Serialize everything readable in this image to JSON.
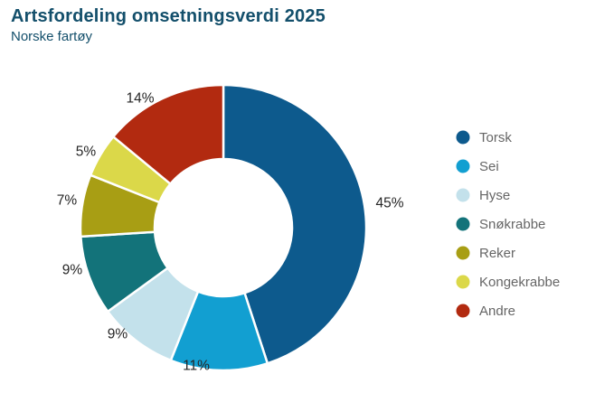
{
  "header": {
    "title": "Artsfordeling omsetningsverdi 2025",
    "subtitle": "Norske fartøy"
  },
  "chart_data": {
    "type": "pie",
    "variant": "donut",
    "title": "Artsfordeling omsetningsverdi 2025",
    "subtitle": "Norske fartøy",
    "unit": "%",
    "direction": "clockwise",
    "start_angle_deg": 0,
    "legend_position": "right",
    "inner_radius_ratio": 0.48,
    "series": [
      {
        "name": "Torsk",
        "value": 45,
        "color": "#0d5a8d"
      },
      {
        "name": "Sei",
        "value": 11,
        "color": "#129fd1"
      },
      {
        "name": "Hyse",
        "value": 9,
        "color": "#c3e1eb"
      },
      {
        "name": "Snøkrabbe",
        "value": 9,
        "color": "#13737a"
      },
      {
        "name": "Reker",
        "value": 7,
        "color": "#a89e14"
      },
      {
        "name": "Kongekrabbe",
        "value": 5,
        "color": "#dbd849"
      },
      {
        "name": "Andre",
        "value": 14,
        "color": "#b22a10"
      }
    ],
    "labels": [
      "45%",
      "11%",
      "9%",
      "9%",
      "7%",
      "5%",
      "14%"
    ]
  }
}
